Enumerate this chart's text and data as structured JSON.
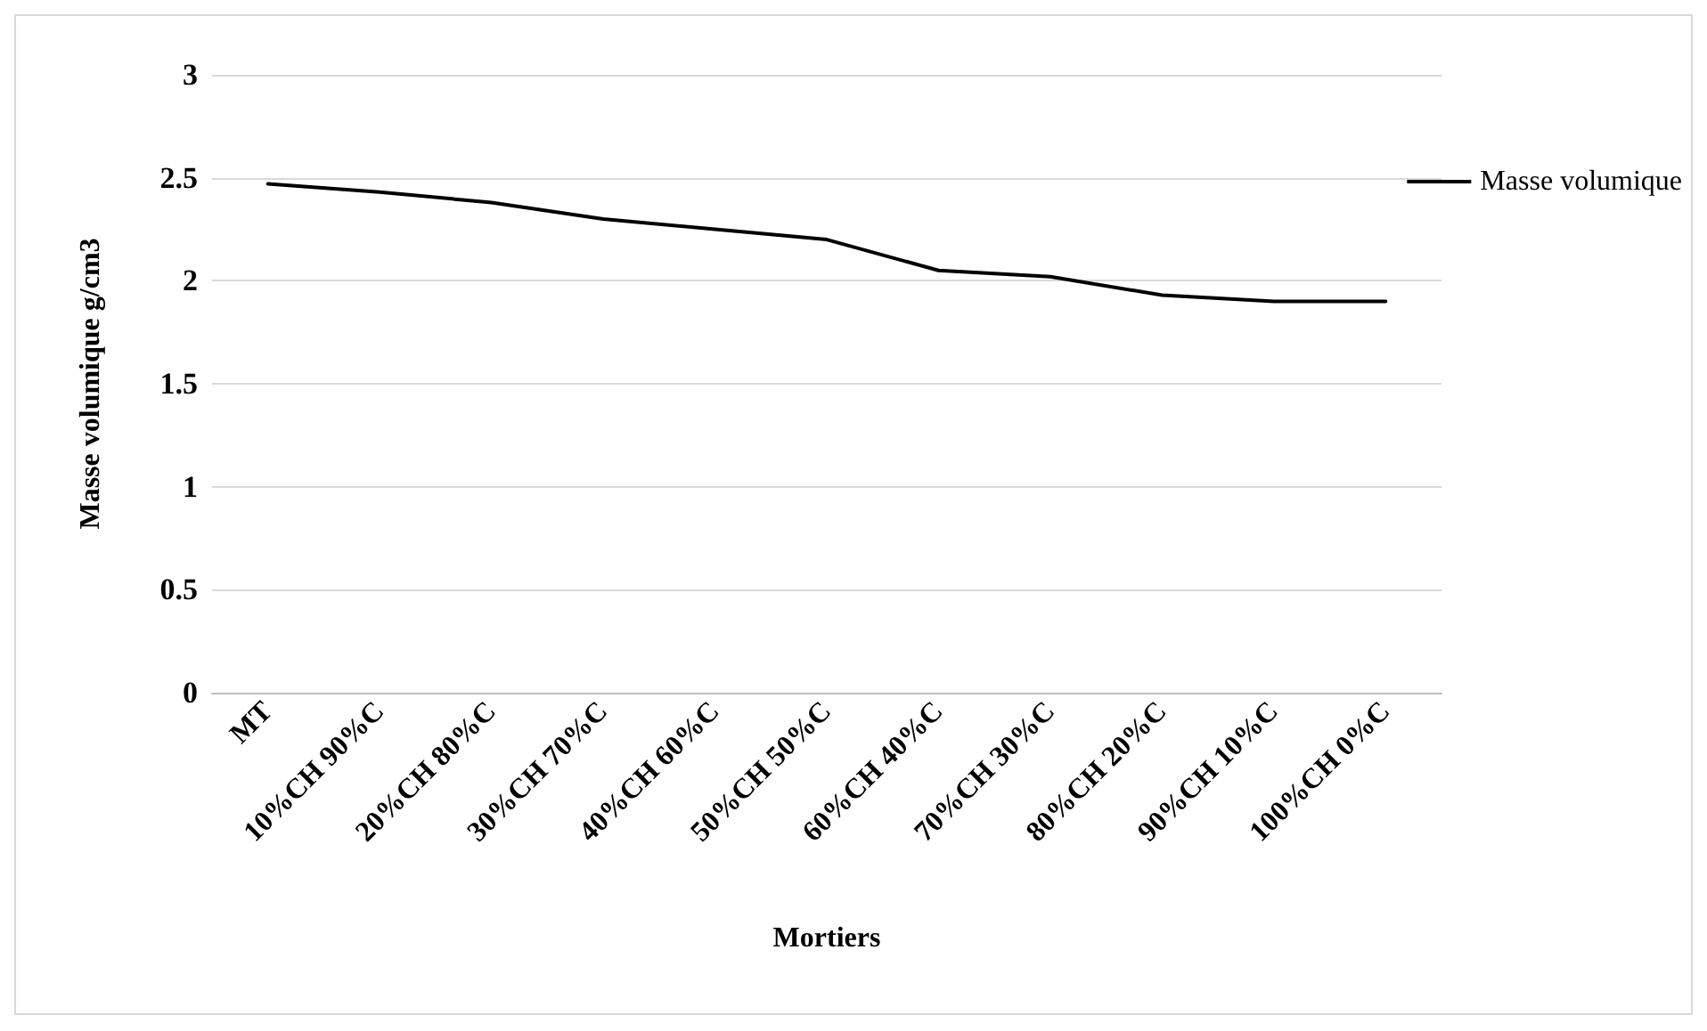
{
  "chart_data": {
    "type": "line",
    "xlabel": "Mortiers",
    "ylabel": "Masse volumique g/cm3",
    "categories": [
      "MT",
      "10%CH 90%C",
      "20%CH 80%C",
      "30%CH 70%C",
      "40%CH 60%C",
      "50%CH 50%C",
      "60%CH 40%C",
      "70%CH 30%C",
      "80%CH 20%C",
      "90%CH 10%C",
      "100%CH 0%C"
    ],
    "series": [
      {
        "name": "Masse volumique",
        "color": "#000000",
        "values": [
          2.47,
          2.43,
          2.38,
          2.3,
          2.25,
          2.2,
          2.05,
          2.02,
          1.93,
          1.9,
          1.9
        ]
      }
    ],
    "ylim": [
      0,
      3
    ],
    "yticks": [
      0,
      0.5,
      1,
      1.5,
      2,
      2.5,
      3
    ],
    "grid": "y",
    "legend": "right",
    "marker": "none",
    "line_style": "solid"
  }
}
